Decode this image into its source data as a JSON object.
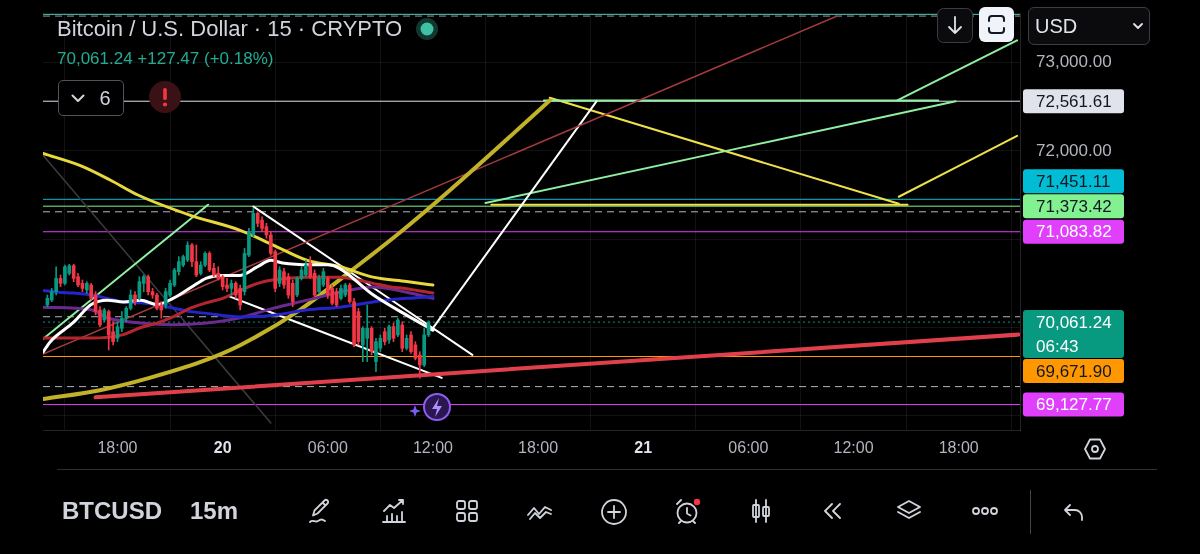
{
  "chart_data": {
    "type": "candlestick",
    "title": "Bitcoin / U.S. Dollar · 15 · CRYPTO",
    "subtitle": "70,061.24 +127.47 (+0.18%)",
    "annotations": [
      "6",
      "USD",
      "BTCUSD",
      "15m"
    ],
    "x": [
      "--03-19T14:00",
      "--03-19T14:15",
      "--03-19T14:30",
      "--03-19T14:45",
      "--03-19T15:00",
      "--03-19T15:15",
      "--03-19T15:30",
      "--03-19T15:45",
      "--03-19T16:00",
      "--03-19T16:15",
      "--03-19T16:30",
      "--03-19T16:45",
      "--03-19T17:00",
      "--03-19T17:15",
      "--03-19T17:30",
      "--03-19T17:45",
      "--03-19T18:00",
      "--03-19T18:15",
      "--03-19T18:30",
      "--03-19T18:45",
      "--03-19T19:00",
      "--03-19T19:15",
      "--03-19T19:30",
      "--03-19T19:45",
      "--03-19T20:00",
      "--03-19T20:15",
      "--03-19T20:30",
      "--03-19T20:45",
      "--03-19T21:00",
      "--03-19T21:15",
      "--03-19T21:30",
      "--03-19T21:45",
      "--03-19T22:00",
      "--03-19T22:15",
      "--03-19T22:30",
      "--03-19T22:45",
      "--03-19T23:00",
      "--03-19T23:15",
      "--03-19T23:30",
      "--03-19T23:45",
      "--03-20T00:00",
      "--03-20T00:15",
      "--03-20T00:30",
      "--03-20T00:45",
      "--03-20T01:00",
      "--03-20T01:15",
      "--03-20T01:30",
      "--03-20T01:45",
      "--03-20T02:00",
      "--03-20T02:15",
      "--03-20T02:30",
      "--03-20T02:45",
      "--03-20T03:00",
      "--03-20T03:15",
      "--03-20T03:30",
      "--03-20T03:45",
      "--03-20T04:00",
      "--03-20T04:15",
      "--03-20T04:30",
      "--03-20T04:45",
      "--03-20T05:00",
      "--03-20T05:15",
      "--03-20T05:30",
      "--03-20T05:45",
      "--03-20T06:00",
      "--03-20T06:15",
      "--03-20T06:30",
      "--03-20T06:45",
      "--03-20T07:00",
      "--03-20T07:15",
      "--03-20T07:30",
      "--03-20T07:45",
      "--03-20T08:00",
      "--03-20T08:15",
      "--03-20T08:30",
      "--03-20T08:45",
      "--03-20T09:00",
      "--03-20T09:15",
      "--03-20T09:30",
      "--03-20T09:45",
      "--03-20T10:00",
      "--03-20T10:15",
      "--03-20T10:30",
      "--03-20T10:45",
      "--03-20T11:00",
      "--03-20T11:15",
      "--03-20T11:30",
      "--03-20T11:45"
    ],
    "ohlc": [
      [
        70255,
        70368,
        70236,
        70330
      ],
      [
        70311,
        70443,
        70293,
        70406
      ],
      [
        70406,
        70688,
        70368,
        70556
      ],
      [
        70556,
        70594,
        70462,
        70500
      ],
      [
        70500,
        70707,
        70481,
        70688
      ],
      [
        70613,
        70715,
        70594,
        70700
      ],
      [
        70700,
        70715,
        70519,
        70556
      ],
      [
        70575,
        70613,
        70462,
        70481
      ],
      [
        70500,
        70538,
        70406,
        70443
      ],
      [
        70425,
        70519,
        70387,
        70500
      ],
      [
        70481,
        70500,
        70311,
        70330
      ],
      [
        70368,
        70406,
        70142,
        70180
      ],
      [
        70198,
        70236,
        70010,
        70029
      ],
      [
        70085,
        70217,
        70066,
        70198
      ],
      [
        70180,
        70198,
        69746,
        69916
      ],
      [
        69953,
        70066,
        69803,
        69840
      ],
      [
        69878,
        70066,
        69840,
        70010
      ],
      [
        69991,
        70180,
        69953,
        70104
      ],
      [
        70104,
        70236,
        70066,
        70217
      ],
      [
        70217,
        70425,
        70198,
        70368
      ],
      [
        70368,
        70406,
        70255,
        70293
      ],
      [
        70330,
        70575,
        70311,
        70519
      ],
      [
        70500,
        70594,
        70406,
        70575
      ],
      [
        70575,
        70594,
        70368,
        70406
      ],
      [
        70406,
        70443,
        70330,
        70368
      ],
      [
        70368,
        70387,
        70198,
        70217
      ],
      [
        70255,
        70293,
        70104,
        70198
      ],
      [
        70255,
        70443,
        70217,
        70406
      ],
      [
        70368,
        70538,
        70349,
        70500
      ],
      [
        70481,
        70670,
        70462,
        70651
      ],
      [
        70632,
        70802,
        70594,
        70745
      ],
      [
        70707,
        70820,
        70688,
        70802
      ],
      [
        70764,
        70971,
        70745,
        70934
      ],
      [
        70934,
        70952,
        70688,
        70745
      ],
      [
        70745,
        70934,
        70575,
        70594
      ],
      [
        70613,
        70745,
        70594,
        70707
      ],
      [
        70707,
        70858,
        70688,
        70839
      ],
      [
        70839,
        70858,
        70632,
        70651
      ],
      [
        70670,
        70726,
        70575,
        70594
      ],
      [
        70613,
        70688,
        70538,
        70556
      ],
      [
        70575,
        70594,
        70425,
        70462
      ],
      [
        70481,
        70556,
        70406,
        70443
      ],
      [
        70443,
        70538,
        70368,
        70500
      ],
      [
        70500,
        70519,
        70330,
        70368
      ],
      [
        70443,
        70481,
        70198,
        70255
      ],
      [
        70406,
        70896,
        70368,
        70839
      ],
      [
        70820,
        71122,
        70802,
        71084
      ],
      [
        71047,
        71348,
        71028,
        71292
      ],
      [
        71292,
        71310,
        71141,
        71179
      ],
      [
        71216,
        71254,
        71084,
        71122
      ],
      [
        71141,
        71179,
        71009,
        71047
      ],
      [
        71047,
        71084,
        70820,
        70839
      ],
      [
        70858,
        70877,
        70406,
        70443
      ],
      [
        70500,
        70688,
        70462,
        70651
      ],
      [
        70632,
        70670,
        70443,
        70481
      ],
      [
        70575,
        70613,
        70330,
        70368
      ],
      [
        70500,
        70538,
        70236,
        70293
      ],
      [
        70368,
        70575,
        70349,
        70556
      ],
      [
        70556,
        70688,
        70538,
        70651
      ],
      [
        70594,
        70764,
        70575,
        70707
      ],
      [
        70726,
        70802,
        70556,
        70575
      ],
      [
        70613,
        70651,
        70349,
        70368
      ],
      [
        70406,
        70594,
        70387,
        70556
      ],
      [
        70481,
        70670,
        70462,
        70632
      ],
      [
        70556,
        70575,
        70330,
        70368
      ],
      [
        70443,
        70481,
        70255,
        70274
      ],
      [
        70406,
        70443,
        70236,
        70255
      ],
      [
        70330,
        70481,
        70311,
        70443
      ],
      [
        70368,
        70500,
        70349,
        70481
      ],
      [
        70481,
        70500,
        70274,
        70293
      ],
      [
        70293,
        70330,
        69784,
        69803
      ],
      [
        70180,
        70217,
        69803,
        69840
      ],
      [
        69803,
        70010,
        69614,
        69991
      ],
      [
        69878,
        70255,
        69614,
        69991
      ],
      [
        69991,
        70010,
        69689,
        69727
      ],
      [
        69614,
        69878,
        69501,
        69840
      ],
      [
        69765,
        69916,
        69727,
        69878
      ],
      [
        69953,
        69991,
        69803,
        69840
      ],
      [
        69859,
        70029,
        69821,
        70010
      ],
      [
        70010,
        70048,
        69840,
        69878
      ],
      [
        69916,
        70104,
        69897,
        70085
      ],
      [
        70029,
        70066,
        69727,
        69765
      ],
      [
        69765,
        69916,
        69746,
        69878
      ],
      [
        69916,
        69953,
        69708,
        69727
      ],
      [
        69803,
        69840,
        69633,
        69652
      ],
      [
        69689,
        69727,
        69426,
        69576
      ],
      [
        69576,
        69991,
        69557,
        69916
      ],
      [
        69916,
        70075,
        69897,
        70061.24
      ]
    ],
    "colors": [
      "#089981",
      "#089981",
      "#089981",
      "#f23645",
      "#089981",
      "#089981",
      "#f23645",
      "#f23645",
      "#f23645",
      "#089981",
      "#f23645",
      "#f23645",
      "#f23645",
      "#089981",
      "#f23645",
      "#f23645",
      "#089981",
      "#089981",
      "#089981",
      "#089981",
      "#f23645",
      "#089981",
      "#089981",
      "#f23645",
      "#f23645",
      "#f23645",
      "#f23645",
      "#089981",
      "#089981",
      "#089981",
      "#089981",
      "#089981",
      "#089981",
      "#f23645",
      "#f23645",
      "#089981",
      "#089981",
      "#f23645",
      "#f23645",
      "#f23645",
      "#f23645",
      "#f23645",
      "#089981",
      "#f23645",
      "#f23645",
      "#089981",
      "#089981",
      "#089981",
      "#f23645",
      "#f23645",
      "#f23645",
      "#f23645",
      "#f23645",
      "#089981",
      "#f23645",
      "#f23645",
      "#f23645",
      "#089981",
      "#089981",
      "#089981",
      "#f23645",
      "#f23645",
      "#089981",
      "#089981",
      "#f23645",
      "#f23645",
      "#f23645",
      "#089981",
      "#089981",
      "#f23645",
      "#f23645",
      "#f23645",
      "#089981",
      "#089981",
      "#f23645",
      "#089981",
      "#089981",
      "#f23645",
      "#089981",
      "#f23645",
      "#089981",
      "#f23645",
      "#089981",
      "#f23645",
      "#f23645",
      "#f23645",
      "#089981",
      "#089981"
    ],
    "series": [
      {
        "type": "line",
        "color": "#ffffff",
        "x": [
          "--03-19T13:45",
          "--03-19T14:10",
          "--03-19T15:30",
          "--03-19T16:30",
          "--03-19T17:25",
          "--03-19T18:20",
          "--03-19T19:20",
          "--03-19T20:15",
          "--03-19T21:10",
          "--03-19T22:10",
          "--03-19T23:05",
          "--03-20T00:00",
          "--03-20T01:00",
          "--03-20T02:00",
          "--03-20T02:45",
          "--03-20T03:25",
          "--03-20T05:00",
          "--03-20T06:00",
          "--03-20T06:40",
          "--03-20T08:35",
          "--03-20T10:30",
          "--03-20T12:00"
        ],
        "values": [
          69720,
          69840,
          70060,
          70260,
          70310,
          70290,
          70310,
          70260,
          70330,
          70450,
          70560,
          70590,
          70590,
          70690,
          70760,
          70730,
          70710,
          70710,
          70670,
          70370,
          70140,
          69970
        ]
      },
      {
        "type": "line",
        "color": "#b3262e",
        "x": [
          "--03-19T13:45",
          "--03-19T16:30",
          "--03-19T18:20",
          "--03-19T19:20",
          "--03-19T20:15",
          "--03-19T21:10",
          "--03-19T22:10",
          "--03-19T23:05",
          "--03-20T00:00",
          "--03-20T01:00",
          "--03-20T02:00",
          "--03-20T02:55",
          "--03-20T04:50",
          "--03-20T06:40",
          "--03-20T07:40",
          "--03-20T08:35",
          "--03-20T09:35",
          "--03-20T10:30",
          "--03-20T12:00"
        ],
        "values": [
          69880,
          69880,
          69920,
          70000,
          70050,
          70120,
          70220,
          70280,
          70330,
          70420,
          70500,
          70540,
          70570,
          70570,
          70540,
          70500,
          70460,
          70440,
          70390
        ]
      },
      {
        "type": "line",
        "color": "#2424c8",
        "x": [
          "--03-19T13:45",
          "--03-19T14:35",
          "--03-19T15:30",
          "--03-19T16:30",
          "--03-19T17:25",
          "--03-19T18:20",
          "--03-19T19:20",
          "--03-19T20:15",
          "--03-19T21:10",
          "--03-19T22:10",
          "--03-19T23:05",
          "--03-20T01:00",
          "--03-20T02:55",
          "--03-20T04:50",
          "--03-20T06:40",
          "--03-20T08:35",
          "--03-20T10:30",
          "--03-20T12:00"
        ],
        "values": [
          70420,
          70400,
          70390,
          70370,
          70330,
          70290,
          70280,
          70260,
          70220,
          70180,
          70160,
          70120,
          70140,
          70200,
          70230,
          70290,
          70330,
          70350
        ]
      },
      {
        "type": "line",
        "color": "#6a2a8f",
        "x": [
          "--03-19T13:45",
          "--03-19T16:30",
          "--03-19T17:25",
          "--03-19T19:20",
          "--03-19T21:10",
          "--03-19T23:05",
          "--03-20T01:00",
          "--03-20T02:55",
          "--03-20T04:50",
          "--03-20T06:40",
          "--03-20T08:35",
          "--03-20T10:30",
          "--03-20T12:00"
        ],
        "values": [
          70230,
          70200,
          70110,
          70050,
          70030,
          70050,
          70110,
          70220,
          70310,
          70400,
          70460,
          70400,
          70330
        ]
      },
      {
        "type": "line",
        "color": "#e8d83c",
        "x": [
          "--03-19T13:45",
          "--03-19T15:55",
          "--03-19T17:35",
          "--03-19T19:10",
          "--03-19T22:10",
          "--03-20T01:00",
          "--03-20T02:55",
          "--03-20T04:50",
          "--03-20T06:40",
          "--03-20T08:35",
          "--03-20T10:30",
          "--03-20T12:00"
        ],
        "values": [
          71970,
          71830,
          71670,
          71500,
          71270,
          71100,
          70930,
          70760,
          70690,
          70570,
          70520,
          70480
        ]
      },
      {
        "type": "line",
        "color": "#c2b22a",
        "x": [
          "--03-19T13:45",
          "--03-19T17:00",
          "--03-19T19:50",
          "--03-19T22:45",
          "--03-20T01:00",
          "--03-20T04:25",
          "--03-20T07:15",
          "--03-20T10:05",
          "--03-20T13:00",
          "--03-20T15:50",
          "--03-20T18:40"
        ],
        "values": [
          69190,
          69290,
          69430,
          69610,
          69800,
          70200,
          70630,
          71070,
          71560,
          72060,
          72570
        ]
      },
      {
        "type": "line",
        "color": "#a33a3f",
        "x": [
          "--03-19T13:45",
          "--03-21T11:00"
        ],
        "values": [
          69700,
          73520
        ]
      },
      {
        "type": "line",
        "color": "#e0404c",
        "x": [
          "--03-19T16:45",
          "--03-21T21:25"
        ],
        "values": [
          69210,
          69920
        ]
      },
      {
        "type": "line",
        "color": "#8ef0a0",
        "x": [
          "--03-19T13:45",
          "--03-19T23:10"
        ],
        "values": [
          69870,
          71390
        ]
      },
      {
        "type": "line",
        "color": "#3c3c3c",
        "x": [
          "--03-19T13:45",
          "--03-20T02:45"
        ],
        "values": [
          71950,
          68920
        ]
      },
      {
        "type": "line",
        "color": "#ffffff",
        "x": [
          "--03-20T01:45",
          "--03-20T14:15"
        ],
        "values": [
          71370,
          69690
        ]
      },
      {
        "type": "line",
        "color": "#ffffff",
        "x": [
          "--03-20T00:25",
          "--03-20T12:30"
        ],
        "values": [
          70350,
          69430
        ]
      },
      {
        "type": "line",
        "color": "#ffffff",
        "x": [
          "--03-20T11:55",
          "--03-20T21:20"
        ],
        "values": [
          69970,
          72560
        ]
      },
      {
        "type": "line",
        "color": "#8ef0a0",
        "x": [
          "--03-20T18:20",
          "--03-21T16:50"
        ],
        "values": [
          72570,
          72570
        ]
      },
      {
        "type": "line",
        "color": "#8ef0a0",
        "x": [
          "--03-20T15:00",
          "--03-21T17:50"
        ],
        "values": [
          71410,
          72560
        ]
      },
      {
        "type": "line",
        "color": "#8ef0a0",
        "x": [
          "--03-21T14:30",
          "--03-21T21:20"
        ],
        "values": [
          72570,
          73250
        ]
      },
      {
        "type": "line",
        "color": "#f0e04a",
        "x": [
          "--03-20T15:20",
          "--03-21T15:05"
        ],
        "values": [
          71390,
          71390
        ]
      },
      {
        "type": "line",
        "color": "#f0e04a",
        "x": [
          "--03-20T18:40",
          "--03-21T14:35"
        ],
        "values": [
          72600,
          71400
        ]
      },
      {
        "type": "line",
        "color": "#f0e04a",
        "x": [
          "--03-21T14:35",
          "--03-21T21:20"
        ],
        "values": [
          71480,
          72170
        ]
      }
    ],
    "ref_lines": [
      {
        "axis": "y",
        "value": 73545,
        "color": "#4dd0c0"
      },
      {
        "axis": "y",
        "value": 73525,
        "color": "#9598a1",
        "line_style": "dashed"
      },
      {
        "axis": "y",
        "value": 72561.61,
        "label": "72,561.61",
        "color": "#e0e3eb"
      },
      {
        "axis": "y",
        "value": 71451.11,
        "label": "71,451.11",
        "color": "#00bcd4"
      },
      {
        "axis": "y",
        "value": 71373.42,
        "label": "71,373.42",
        "color": "#81f28f"
      },
      {
        "axis": "y",
        "value": 71310,
        "color": "#b2b5be",
        "line_style": "dashed"
      },
      {
        "axis": "y",
        "value": 71083.82,
        "label": "71,083.82",
        "color": "#e040fb"
      },
      {
        "axis": "y",
        "value": 70122,
        "color": "#b2b5be",
        "line_style": "dashed"
      },
      {
        "axis": "y",
        "value": 70061.24,
        "label": "70,061.24\n06:43",
        "color": "#089981",
        "line_style": "dotted"
      },
      {
        "axis": "y",
        "value": 69671.9,
        "label": "69,671.90",
        "color": "#ff9800"
      },
      {
        "axis": "y",
        "value": 69331,
        "color": "#b2b5be",
        "line_style": "dashed"
      },
      {
        "axis": "y",
        "value": 69127.77,
        "label": "69,127.77",
        "color": "#e040fb"
      }
    ],
    "xlim": [
      "--03-19T13:45",
      "--03-21T21:30"
    ],
    "ylim": [
      68840,
      73560
    ],
    "xticks": [
      {
        "value": "--03-19T18:00",
        "label": "18:00"
      },
      {
        "value": "--03-20",
        "label": "20"
      },
      {
        "value": "--03-20T06:00",
        "label": "06:00"
      },
      {
        "value": "--03-20T12:00",
        "label": "12:00"
      },
      {
        "value": "--03-20T18:00",
        "label": "18:00"
      },
      {
        "value": "--03-21",
        "label": "21"
      },
      {
        "value": "--03-21T06:00",
        "label": "06:00"
      },
      {
        "value": "--03-21T12:00",
        "label": "12:00"
      },
      {
        "value": "--03-21T18:00",
        "label": "18:00"
      }
    ],
    "yticks": [
      {
        "value": 69000,
        "label": null
      },
      {
        "value": 70000,
        "label": null
      },
      {
        "value": 71000,
        "label": null
      },
      {
        "value": 72000,
        "label": "72,000.00"
      },
      {
        "value": 73000,
        "label": "73,000.00"
      }
    ],
    "grid": true
  }
}
